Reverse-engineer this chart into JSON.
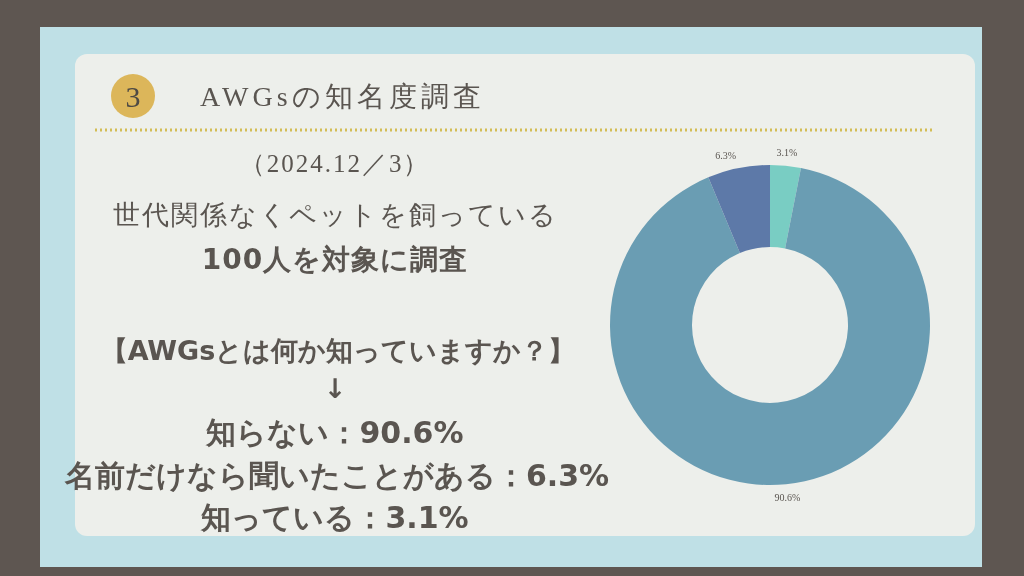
{
  "chart_data": {
    "type": "donut",
    "title": "AWGsの知名度調査",
    "categories": [
      null,
      null,
      null
    ],
    "values": [
      3.1,
      90.6,
      6.3
    ],
    "colors": [
      "#79cdc3",
      "#6a9db3",
      "#5d79a8"
    ],
    "value_labels": [
      "3.1%",
      "90.6%",
      "6.3%"
    ],
    "annotations": [
      "3",
      "（2024.12／3）",
      "世代関係なくペットを飼っている",
      "100人を対象に調査",
      "【AWGsとは何か知っていますか？】",
      "↓",
      "知らない：90.6%",
      "名前だけなら聞いたことがある：6.3%",
      "知っている：3.1%"
    ]
  }
}
